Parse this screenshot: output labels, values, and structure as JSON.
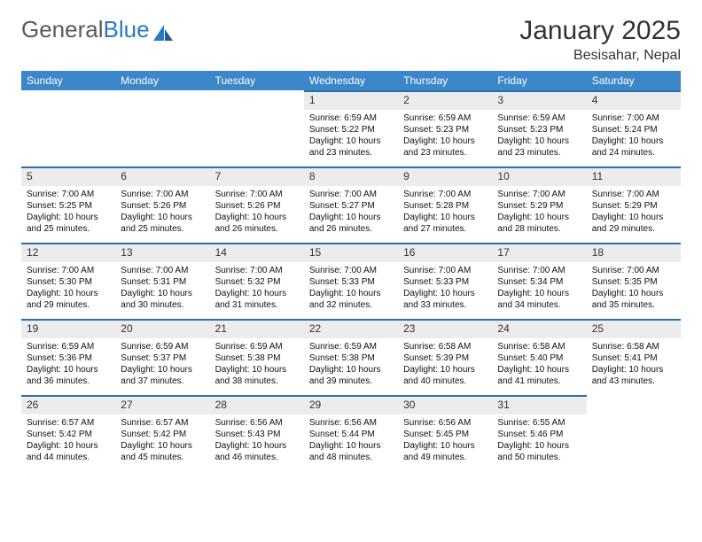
{
  "brand": {
    "part1": "General",
    "part2": "Blue"
  },
  "title": "January 2025",
  "location": "Besisahar, Nepal",
  "colors": {
    "header_bg": "#3b87c8",
    "rule": "#2a6fa8",
    "daynum_bg": "#ececec",
    "text": "#333333",
    "brand_gray": "#5a5a5a",
    "brand_blue": "#2a7bbf"
  },
  "weekdays": [
    "Sunday",
    "Monday",
    "Tuesday",
    "Wednesday",
    "Thursday",
    "Friday",
    "Saturday"
  ],
  "weeks": [
    [
      {
        "n": "",
        "sr": "",
        "ss": "",
        "dl": ""
      },
      {
        "n": "",
        "sr": "",
        "ss": "",
        "dl": ""
      },
      {
        "n": "",
        "sr": "",
        "ss": "",
        "dl": ""
      },
      {
        "n": "1",
        "sr": "6:59 AM",
        "ss": "5:22 PM",
        "dl": "10 hours and 23 minutes."
      },
      {
        "n": "2",
        "sr": "6:59 AM",
        "ss": "5:23 PM",
        "dl": "10 hours and 23 minutes."
      },
      {
        "n": "3",
        "sr": "6:59 AM",
        "ss": "5:23 PM",
        "dl": "10 hours and 23 minutes."
      },
      {
        "n": "4",
        "sr": "7:00 AM",
        "ss": "5:24 PM",
        "dl": "10 hours and 24 minutes."
      }
    ],
    [
      {
        "n": "5",
        "sr": "7:00 AM",
        "ss": "5:25 PM",
        "dl": "10 hours and 25 minutes."
      },
      {
        "n": "6",
        "sr": "7:00 AM",
        "ss": "5:26 PM",
        "dl": "10 hours and 25 minutes."
      },
      {
        "n": "7",
        "sr": "7:00 AM",
        "ss": "5:26 PM",
        "dl": "10 hours and 26 minutes."
      },
      {
        "n": "8",
        "sr": "7:00 AM",
        "ss": "5:27 PM",
        "dl": "10 hours and 26 minutes."
      },
      {
        "n": "9",
        "sr": "7:00 AM",
        "ss": "5:28 PM",
        "dl": "10 hours and 27 minutes."
      },
      {
        "n": "10",
        "sr": "7:00 AM",
        "ss": "5:29 PM",
        "dl": "10 hours and 28 minutes."
      },
      {
        "n": "11",
        "sr": "7:00 AM",
        "ss": "5:29 PM",
        "dl": "10 hours and 29 minutes."
      }
    ],
    [
      {
        "n": "12",
        "sr": "7:00 AM",
        "ss": "5:30 PM",
        "dl": "10 hours and 29 minutes."
      },
      {
        "n": "13",
        "sr": "7:00 AM",
        "ss": "5:31 PM",
        "dl": "10 hours and 30 minutes."
      },
      {
        "n": "14",
        "sr": "7:00 AM",
        "ss": "5:32 PM",
        "dl": "10 hours and 31 minutes."
      },
      {
        "n": "15",
        "sr": "7:00 AM",
        "ss": "5:33 PM",
        "dl": "10 hours and 32 minutes."
      },
      {
        "n": "16",
        "sr": "7:00 AM",
        "ss": "5:33 PM",
        "dl": "10 hours and 33 minutes."
      },
      {
        "n": "17",
        "sr": "7:00 AM",
        "ss": "5:34 PM",
        "dl": "10 hours and 34 minutes."
      },
      {
        "n": "18",
        "sr": "7:00 AM",
        "ss": "5:35 PM",
        "dl": "10 hours and 35 minutes."
      }
    ],
    [
      {
        "n": "19",
        "sr": "6:59 AM",
        "ss": "5:36 PM",
        "dl": "10 hours and 36 minutes."
      },
      {
        "n": "20",
        "sr": "6:59 AM",
        "ss": "5:37 PM",
        "dl": "10 hours and 37 minutes."
      },
      {
        "n": "21",
        "sr": "6:59 AM",
        "ss": "5:38 PM",
        "dl": "10 hours and 38 minutes."
      },
      {
        "n": "22",
        "sr": "6:59 AM",
        "ss": "5:38 PM",
        "dl": "10 hours and 39 minutes."
      },
      {
        "n": "23",
        "sr": "6:58 AM",
        "ss": "5:39 PM",
        "dl": "10 hours and 40 minutes."
      },
      {
        "n": "24",
        "sr": "6:58 AM",
        "ss": "5:40 PM",
        "dl": "10 hours and 41 minutes."
      },
      {
        "n": "25",
        "sr": "6:58 AM",
        "ss": "5:41 PM",
        "dl": "10 hours and 43 minutes."
      }
    ],
    [
      {
        "n": "26",
        "sr": "6:57 AM",
        "ss": "5:42 PM",
        "dl": "10 hours and 44 minutes."
      },
      {
        "n": "27",
        "sr": "6:57 AM",
        "ss": "5:42 PM",
        "dl": "10 hours and 45 minutes."
      },
      {
        "n": "28",
        "sr": "6:56 AM",
        "ss": "5:43 PM",
        "dl": "10 hours and 46 minutes."
      },
      {
        "n": "29",
        "sr": "6:56 AM",
        "ss": "5:44 PM",
        "dl": "10 hours and 48 minutes."
      },
      {
        "n": "30",
        "sr": "6:56 AM",
        "ss": "5:45 PM",
        "dl": "10 hours and 49 minutes."
      },
      {
        "n": "31",
        "sr": "6:55 AM",
        "ss": "5:46 PM",
        "dl": "10 hours and 50 minutes."
      },
      {
        "n": "",
        "sr": "",
        "ss": "",
        "dl": ""
      }
    ]
  ],
  "labels": {
    "sunrise": "Sunrise:",
    "sunset": "Sunset:",
    "daylight": "Daylight:"
  }
}
